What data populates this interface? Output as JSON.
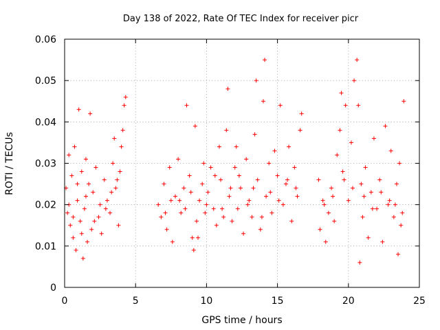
{
  "chart_data": {
    "type": "scatter",
    "title": "Day 138 of 2022, Rate Of TEC Index for receiver picr",
    "xlabel": "GPS time / hours",
    "ylabel": "ROTI / TECUs",
    "xlim": [
      0,
      25
    ],
    "ylim": [
      0,
      0.06
    ],
    "x_ticks": [
      "0",
      "5",
      "10",
      "15",
      "20",
      "25"
    ],
    "y_ticks": [
      "0",
      "0.01",
      "0.02",
      "0.03",
      "0.04",
      "0.05",
      "0.06"
    ],
    "grid": true,
    "marker": "+",
    "color": "#ff0000",
    "series": [
      {
        "name": "",
        "points": [
          [
            0.1,
            0.024
          ],
          [
            0.2,
            0.018
          ],
          [
            0.3,
            0.032
          ],
          [
            0.4,
            0.015
          ],
          [
            0.5,
            0.027
          ],
          [
            0.6,
            0.012
          ],
          [
            0.7,
            0.034
          ],
          [
            0.8,
            0.009
          ],
          [
            0.9,
            0.021
          ],
          [
            1.0,
            0.043
          ],
          [
            1.1,
            0.016
          ],
          [
            1.2,
            0.028
          ],
          [
            1.3,
            0.007
          ],
          [
            1.4,
            0.019
          ],
          [
            1.5,
            0.031
          ],
          [
            1.6,
            0.011
          ],
          [
            1.7,
            0.025
          ],
          [
            1.8,
            0.042
          ],
          [
            1.9,
            0.014
          ],
          [
            2.0,
            0.023
          ],
          [
            2.2,
            0.029
          ],
          [
            2.4,
            0.017
          ],
          [
            2.6,
            0.013
          ],
          [
            2.8,
            0.026
          ],
          [
            3.0,
            0.021
          ],
          [
            3.2,
            0.018
          ],
          [
            3.4,
            0.03
          ],
          [
            3.5,
            0.036
          ],
          [
            3.6,
            0.024
          ],
          [
            3.8,
            0.015
          ],
          [
            3.9,
            0.028
          ],
          [
            4.0,
            0.034
          ],
          [
            4.1,
            0.038
          ],
          [
            4.2,
            0.044
          ],
          [
            4.3,
            0.046
          ],
          [
            0.3,
            0.02
          ],
          [
            0.6,
            0.017
          ],
          [
            0.9,
            0.025
          ],
          [
            1.2,
            0.013
          ],
          [
            1.5,
            0.022
          ],
          [
            2.1,
            0.016
          ],
          [
            2.5,
            0.02
          ],
          [
            2.9,
            0.019
          ],
          [
            3.3,
            0.023
          ],
          [
            3.7,
            0.026
          ],
          [
            6.6,
            0.02
          ],
          [
            6.8,
            0.017
          ],
          [
            7.0,
            0.025
          ],
          [
            7.2,
            0.014
          ],
          [
            7.4,
            0.029
          ],
          [
            7.6,
            0.011
          ],
          [
            7.8,
            0.022
          ],
          [
            8.0,
            0.031
          ],
          [
            8.2,
            0.018
          ],
          [
            8.4,
            0.024
          ],
          [
            8.6,
            0.044
          ],
          [
            8.8,
            0.027
          ],
          [
            9.0,
            0.012
          ],
          [
            9.1,
            0.009
          ],
          [
            9.2,
            0.039
          ],
          [
            9.3,
            0.016
          ],
          [
            9.5,
            0.021
          ],
          [
            9.7,
            0.025
          ],
          [
            9.9,
            0.018
          ],
          [
            10.1,
            0.023
          ],
          [
            10.3,
            0.029
          ],
          [
            10.5,
            0.019
          ],
          [
            10.7,
            0.015
          ],
          [
            10.9,
            0.034
          ],
          [
            11.0,
            0.026
          ],
          [
            11.2,
            0.017
          ],
          [
            11.4,
            0.038
          ],
          [
            11.5,
            0.048
          ],
          [
            11.6,
            0.022
          ],
          [
            11.8,
            0.016
          ],
          [
            12.0,
            0.029
          ],
          [
            12.2,
            0.019
          ],
          [
            12.4,
            0.024
          ],
          [
            12.6,
            0.013
          ],
          [
            12.8,
            0.031
          ],
          [
            13.0,
            0.021
          ],
          [
            13.2,
            0.017
          ],
          [
            13.4,
            0.037
          ],
          [
            13.5,
            0.05
          ],
          [
            13.6,
            0.026
          ],
          [
            13.8,
            0.014
          ],
          [
            14.0,
            0.045
          ],
          [
            14.1,
            0.055
          ],
          [
            14.2,
            0.022
          ],
          [
            14.4,
            0.03
          ],
          [
            14.6,
            0.018
          ],
          [
            14.8,
            0.033
          ],
          [
            15.0,
            0.027
          ],
          [
            15.2,
            0.044
          ],
          [
            15.4,
            0.02
          ],
          [
            15.6,
            0.025
          ],
          [
            15.8,
            0.034
          ],
          [
            16.0,
            0.016
          ],
          [
            16.2,
            0.029
          ],
          [
            16.4,
            0.022
          ],
          [
            16.6,
            0.038
          ],
          [
            16.7,
            0.042
          ],
          [
            8.1,
            0.021
          ],
          [
            8.5,
            0.019
          ],
          [
            8.9,
            0.023
          ],
          [
            9.4,
            0.012
          ],
          [
            10.0,
            0.02
          ],
          [
            10.6,
            0.027
          ],
          [
            11.1,
            0.019
          ],
          [
            11.7,
            0.024
          ],
          [
            12.3,
            0.027
          ],
          [
            12.9,
            0.02
          ],
          [
            13.3,
            0.024
          ],
          [
            13.9,
            0.017
          ],
          [
            14.5,
            0.023
          ],
          [
            15.1,
            0.021
          ],
          [
            15.7,
            0.026
          ],
          [
            16.3,
            0.024
          ],
          [
            7.1,
            0.018
          ],
          [
            7.5,
            0.021
          ],
          [
            9.8,
            0.03
          ],
          [
            12.1,
            0.034
          ],
          [
            17.9,
            0.026
          ],
          [
            18.0,
            0.014
          ],
          [
            18.2,
            0.021
          ],
          [
            18.4,
            0.011
          ],
          [
            18.6,
            0.018
          ],
          [
            18.8,
            0.024
          ],
          [
            19.0,
            0.016
          ],
          [
            19.2,
            0.032
          ],
          [
            19.4,
            0.038
          ],
          [
            19.5,
            0.047
          ],
          [
            19.6,
            0.028
          ],
          [
            19.8,
            0.044
          ],
          [
            20.0,
            0.021
          ],
          [
            20.2,
            0.035
          ],
          [
            20.4,
            0.05
          ],
          [
            20.6,
            0.055
          ],
          [
            20.7,
            0.044
          ],
          [
            20.8,
            0.006
          ],
          [
            20.9,
            0.025
          ],
          [
            21.0,
            0.017
          ],
          [
            21.2,
            0.029
          ],
          [
            21.4,
            0.012
          ],
          [
            21.6,
            0.023
          ],
          [
            21.8,
            0.036
          ],
          [
            22.0,
            0.019
          ],
          [
            22.2,
            0.026
          ],
          [
            22.4,
            0.011
          ],
          [
            22.6,
            0.039
          ],
          [
            22.8,
            0.02
          ],
          [
            23.0,
            0.033
          ],
          [
            23.2,
            0.017
          ],
          [
            23.4,
            0.025
          ],
          [
            23.5,
            0.008
          ],
          [
            23.6,
            0.03
          ],
          [
            23.8,
            0.018
          ],
          [
            23.9,
            0.045
          ],
          [
            18.3,
            0.02
          ],
          [
            18.9,
            0.022
          ],
          [
            19.7,
            0.026
          ],
          [
            20.3,
            0.024
          ],
          [
            21.1,
            0.022
          ],
          [
            21.7,
            0.019
          ],
          [
            22.3,
            0.023
          ],
          [
            22.9,
            0.021
          ],
          [
            23.3,
            0.02
          ],
          [
            23.7,
            0.015
          ]
        ]
      }
    ]
  }
}
